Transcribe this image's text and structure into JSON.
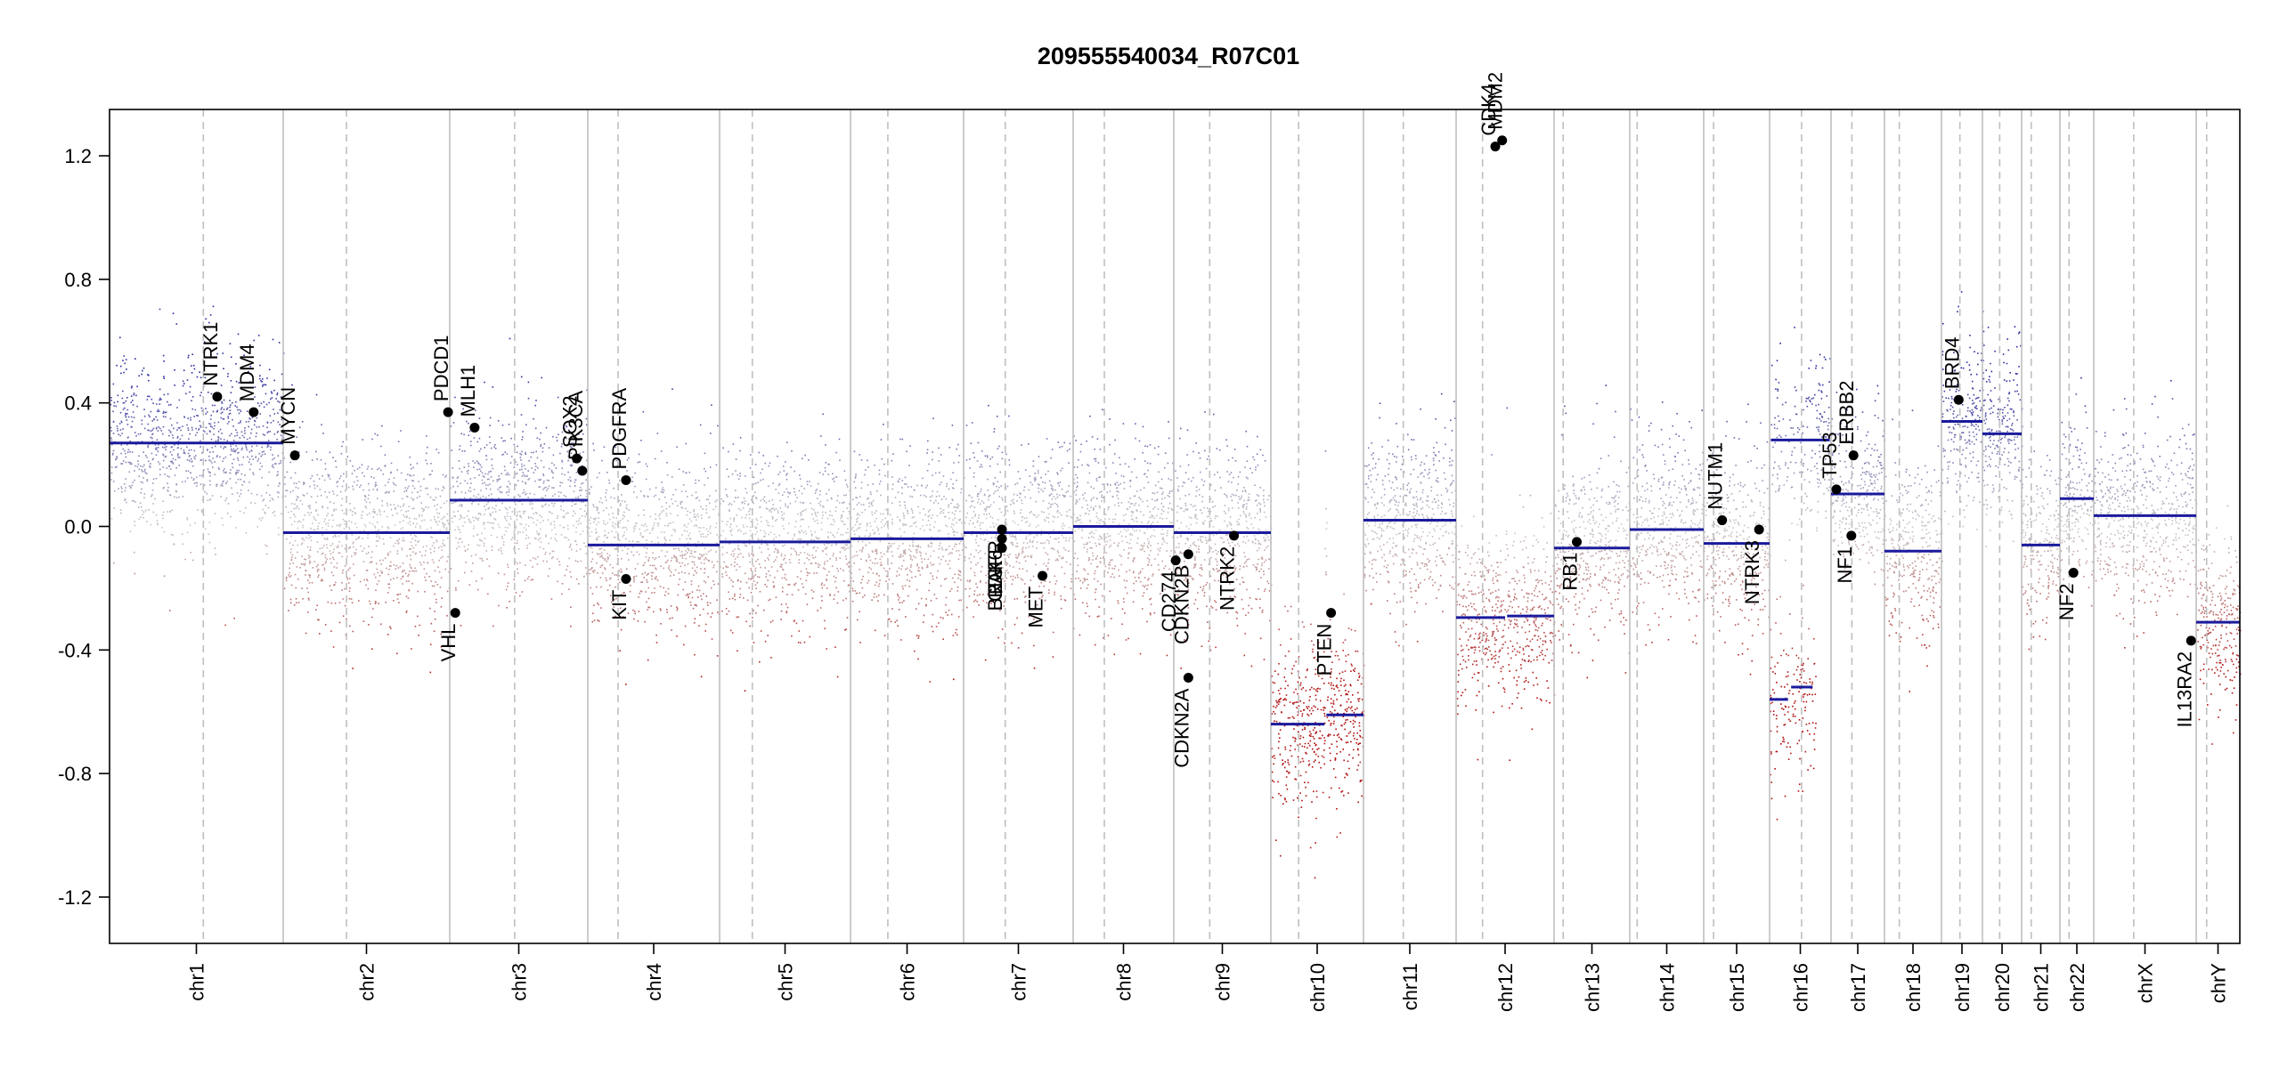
{
  "chart_data": {
    "type": "scatter",
    "title": "209555540034_R07C01",
    "xlabel": "",
    "ylabel": "",
    "ylim": [
      -1.35,
      1.35
    ],
    "y_ticks": [
      -1.2,
      -0.8,
      -0.4,
      0.0,
      0.4,
      0.8,
      1.2
    ],
    "y_tick_labels": [
      "-1.2",
      "-0.8",
      "-0.4",
      "0.0",
      "0.4",
      "0.8",
      "1.2"
    ],
    "colors": {
      "gain": "#2b2b9e",
      "loss": "#b01010",
      "neutral": "#c8c8c8",
      "segment": "#1a1a9c",
      "gene": "#000000",
      "grid": "#bfbfbf"
    },
    "chromosomes": [
      {
        "name": "chr1",
        "segments": [
          {
            "start": 0.0,
            "end": 1.0,
            "value": 0.27
          }
        ]
      },
      {
        "name": "chr2",
        "segments": [
          {
            "start": 0.0,
            "end": 1.0,
            "value": -0.02
          }
        ]
      },
      {
        "name": "chr3",
        "segments": [
          {
            "start": 0.0,
            "end": 1.0,
            "value": 0.085
          }
        ]
      },
      {
        "name": "chr4",
        "segments": [
          {
            "start": 0.0,
            "end": 1.0,
            "value": -0.06
          }
        ]
      },
      {
        "name": "chr5",
        "segments": [
          {
            "start": 0.0,
            "end": 1.0,
            "value": -0.05
          }
        ]
      },
      {
        "name": "chr6",
        "segments": [
          {
            "start": 0.0,
            "end": 1.0,
            "value": -0.04
          }
        ]
      },
      {
        "name": "chr7",
        "segments": [
          {
            "start": 0.0,
            "end": 1.0,
            "value": -0.02
          }
        ]
      },
      {
        "name": "chr8",
        "segments": [
          {
            "start": 0.0,
            "end": 1.0,
            "value": 0.0
          }
        ]
      },
      {
        "name": "chr9",
        "segments": [
          {
            "start": 0.0,
            "end": 1.0,
            "value": -0.02
          }
        ]
      },
      {
        "name": "chr10",
        "segments": [
          {
            "start": 0.0,
            "end": 0.58,
            "value": -0.64
          },
          {
            "start": 0.6,
            "end": 1.0,
            "value": -0.61
          }
        ]
      },
      {
        "name": "chr11",
        "segments": [
          {
            "start": 0.0,
            "end": 1.0,
            "value": 0.02
          }
        ]
      },
      {
        "name": "chr12",
        "segments": [
          {
            "start": 0.0,
            "end": 0.5,
            "value": -0.295
          },
          {
            "start": 0.52,
            "end": 1.0,
            "value": -0.29
          }
        ]
      },
      {
        "name": "chr13",
        "segments": [
          {
            "start": 0.0,
            "end": 1.0,
            "value": -0.07
          }
        ]
      },
      {
        "name": "chr14",
        "segments": [
          {
            "start": 0.0,
            "end": 1.0,
            "value": -0.01
          }
        ]
      },
      {
        "name": "chr15",
        "segments": [
          {
            "start": 0.0,
            "end": 1.0,
            "value": -0.055
          }
        ]
      },
      {
        "name": "chr16",
        "segments": [
          {
            "start": 0.0,
            "end": 0.3,
            "value": -0.56
          },
          {
            "start": 0.35,
            "end": 0.7,
            "value": -0.52
          },
          {
            "start": 0.02,
            "end": 0.98,
            "value": 0.28
          }
        ]
      },
      {
        "name": "chr17",
        "segments": [
          {
            "start": 0.0,
            "end": 1.0,
            "value": 0.105
          }
        ]
      },
      {
        "name": "chr18",
        "segments": [
          {
            "start": 0.0,
            "end": 1.0,
            "value": -0.08
          }
        ]
      },
      {
        "name": "chr19",
        "segments": [
          {
            "start": 0.0,
            "end": 1.0,
            "value": 0.34
          }
        ]
      },
      {
        "name": "chr20",
        "segments": [
          {
            "start": 0.0,
            "end": 1.0,
            "value": 0.3
          }
        ]
      },
      {
        "name": "chr21",
        "segments": [
          {
            "start": 0.0,
            "end": 1.0,
            "value": -0.06
          }
        ]
      },
      {
        "name": "chr22",
        "segments": [
          {
            "start": 0.0,
            "end": 1.0,
            "value": 0.09
          }
        ]
      },
      {
        "name": "chrX",
        "segments": [
          {
            "start": 0.0,
            "end": 1.0,
            "value": 0.035
          }
        ]
      },
      {
        "name": "chrY",
        "segments": [
          {
            "start": 0.0,
            "end": 1.0,
            "value": -0.31
          }
        ]
      }
    ],
    "genes": [
      {
        "name": "NTRK1",
        "chr": "chr1",
        "pos": 0.62,
        "value": 0.42
      },
      {
        "name": "MDM4",
        "chr": "chr1",
        "pos": 0.83,
        "value": 0.37
      },
      {
        "name": "MYCN",
        "chr": "chr2",
        "pos": 0.07,
        "value": 0.23
      },
      {
        "name": "PDCD1",
        "chr": "chr2",
        "pos": 0.99,
        "value": 0.37
      },
      {
        "name": "VHL",
        "chr": "chr3",
        "pos": 0.04,
        "value": -0.28
      },
      {
        "name": "MLH1",
        "chr": "chr3",
        "pos": 0.18,
        "value": 0.32
      },
      {
        "name": "SOX2",
        "chr": "chr3",
        "pos": 0.92,
        "value": 0.22
      },
      {
        "name": "PIK3CA",
        "chr": "chr3",
        "pos": 0.96,
        "value": 0.18
      },
      {
        "name": "PDGFRA",
        "chr": "chr4",
        "pos": 0.29,
        "value": 0.15
      },
      {
        "name": "KIT",
        "chr": "chr4",
        "pos": 0.29,
        "value": -0.17
      },
      {
        "name": "EGFR",
        "chr": "chr7",
        "pos": 0.35,
        "value": -0.01
      },
      {
        "name": "CDK6",
        "chr": "chr7",
        "pos": 0.35,
        "value": -0.04
      },
      {
        "name": "BRAF",
        "chr": "chr7",
        "pos": 0.35,
        "value": -0.07
      },
      {
        "name": "MET",
        "chr": "chr7",
        "pos": 0.72,
        "value": -0.16
      },
      {
        "name": "CD274",
        "chr": "chr9",
        "pos": 0.02,
        "value": -0.11
      },
      {
        "name": "CDKN2B",
        "chr": "chr9",
        "pos": 0.15,
        "value": -0.09
      },
      {
        "name": "CDKN2A",
        "chr": "chr9",
        "pos": 0.15,
        "value": -0.49
      },
      {
        "name": "NTRK2",
        "chr": "chr9",
        "pos": 0.62,
        "value": -0.03
      },
      {
        "name": "PTEN",
        "chr": "chr10",
        "pos": 0.65,
        "value": -0.28
      },
      {
        "name": "CDK4",
        "chr": "chr12",
        "pos": 0.4,
        "value": 1.23
      },
      {
        "name": "MDM2",
        "chr": "chr12",
        "pos": 0.47,
        "value": 1.25
      },
      {
        "name": "RB1",
        "chr": "chr13",
        "pos": 0.3,
        "value": -0.05
      },
      {
        "name": "NUTM1",
        "chr": "chr15",
        "pos": 0.28,
        "value": 0.02
      },
      {
        "name": "NTRK3",
        "chr": "chr15",
        "pos": 0.84,
        "value": -0.01
      },
      {
        "name": "TP53",
        "chr": "chr17",
        "pos": 0.1,
        "value": 0.12
      },
      {
        "name": "NF1",
        "chr": "chr17",
        "pos": 0.38,
        "value": -0.03
      },
      {
        "name": "ERBB2",
        "chr": "chr17",
        "pos": 0.42,
        "value": 0.23
      },
      {
        "name": "BRD4",
        "chr": "chr19",
        "pos": 0.42,
        "value": 0.41
      },
      {
        "name": "NF2",
        "chr": "chr22",
        "pos": 0.4,
        "value": -0.15
      },
      {
        "name": "IL13RA2",
        "chr": "chrX",
        "pos": 0.95,
        "value": -0.37
      }
    ]
  }
}
